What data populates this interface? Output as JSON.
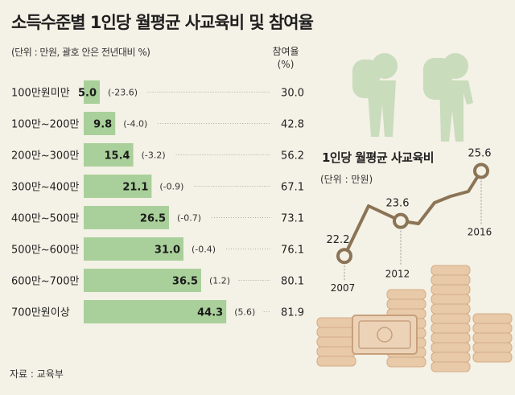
{
  "title": "소득수준별 1인당 월평균 사교육비 및 참여율",
  "unit_note": "(단위 : 만원, 괄호 안은 전년대비 %)",
  "rate_header_line1": "참여율",
  "rate_header_line2": "(%)",
  "source": "자료 : 교육부",
  "colors": {
    "bar": "#a9d09a",
    "line": "#8b7355",
    "coin": "#e8c9a8",
    "figure": "#c9dcbc"
  },
  "chart_data": [
    {
      "type": "bar",
      "orientation": "horizontal",
      "categories": [
        "100만원미만",
        "100만~200만",
        "200만~300만",
        "300만~400만",
        "400만~500만",
        "500만~600만",
        "600만~700만",
        "700만원이상"
      ],
      "values": [
        5.0,
        9.8,
        15.4,
        21.1,
        26.5,
        31.0,
        36.5,
        44.3
      ],
      "value_labels": [
        "5.0",
        "9.8",
        "15.4",
        "21.1",
        "26.5",
        "31.0",
        "36.5",
        "44.3"
      ],
      "change_labels": [
        "(-23.6)",
        "(-4.0)",
        "(-3.2)",
        "(-0.9)",
        "(-0.7)",
        "(-0.4)",
        "(1.2)",
        "(5.6)"
      ],
      "participation_rate": [
        "30.0",
        "42.8",
        "56.2",
        "67.1",
        "73.1",
        "76.1",
        "80.1",
        "81.9"
      ],
      "xlim": [
        0,
        50
      ]
    },
    {
      "type": "line",
      "title": "1인당 월평균 사교육비",
      "unit": "(단위 : 만원)",
      "x": [
        "2007",
        "2012",
        "2016"
      ],
      "values": [
        22.2,
        23.6,
        25.6
      ],
      "value_labels": [
        "22.2",
        "23.6",
        "25.6"
      ]
    }
  ]
}
